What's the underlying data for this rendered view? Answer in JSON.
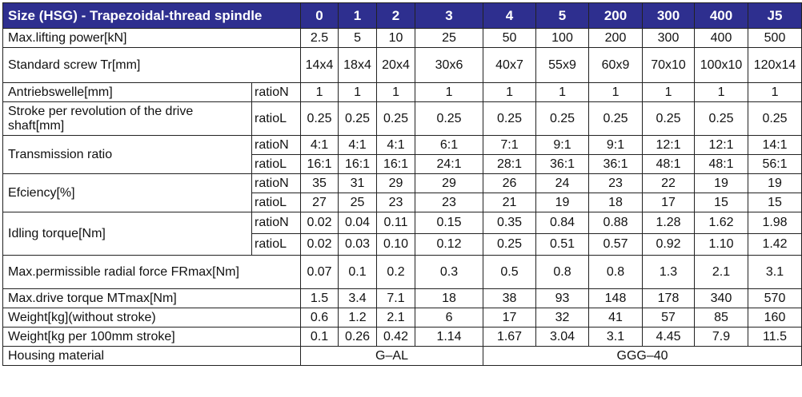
{
  "header": {
    "title": "Size (HSG) - Trapezoidal-thread spindle",
    "sizes": [
      "0",
      "1",
      "2",
      "3",
      "4",
      "5",
      "200",
      "300",
      "400",
      "J5"
    ]
  },
  "rows": {
    "max_lifting_power": {
      "label": "Max.lifting power[kN]",
      "values": [
        "2.5",
        "5",
        "10",
        "25",
        "50",
        "100",
        "200",
        "300",
        "400",
        "500"
      ]
    },
    "standard_screw": {
      "label": "Standard screw Tr[mm]",
      "values": [
        "14x4",
        "18x4",
        "20x4",
        "30x6",
        "40x7",
        "55x9",
        "60x9",
        "70x10",
        "100x10",
        "120x14"
      ]
    },
    "antriebswelle": {
      "label": "Antriebswelle[mm]",
      "ratio": "ratioN",
      "values": [
        "1",
        "1",
        "1",
        "1",
        "1",
        "1",
        "1",
        "1",
        "1",
        "1"
      ]
    },
    "stroke_per_revolution": {
      "label": "Stroke per revolution of the drive shaft[mm]",
      "ratio": "ratioL",
      "values": [
        "0.25",
        "0.25",
        "0.25",
        "0.25",
        "0.25",
        "0.25",
        "0.25",
        "0.25",
        "0.25",
        "0.25"
      ]
    },
    "transmission_ratio": {
      "label": "Transmission ratio",
      "ratio_n": "ratioN",
      "values_n": [
        "4:1",
        "4:1",
        "4:1",
        "6:1",
        "7:1",
        "9:1",
        "9:1",
        "12:1",
        "12:1",
        "14:1"
      ],
      "ratio_l": "ratioL",
      "values_l": [
        "16:1",
        "16:1",
        "16:1",
        "24:1",
        "28:1",
        "36:1",
        "36:1",
        "48:1",
        "48:1",
        "56:1"
      ]
    },
    "efficiency": {
      "label": "Efciency[%]",
      "ratio_n": "ratioN",
      "values_n": [
        "35",
        "31",
        "29",
        "29",
        "26",
        "24",
        "23",
        "22",
        "19",
        "19"
      ],
      "ratio_l": "ratioL",
      "values_l": [
        "27",
        "25",
        "23",
        "23",
        "21",
        "19",
        "18",
        "17",
        "15",
        "15"
      ]
    },
    "idling_torque": {
      "label": "Idling torque[Nm]",
      "ratio_n": "ratioN",
      "values_n": [
        "0.02",
        "0.04",
        "0.11",
        "0.15",
        "0.35",
        "0.84",
        "0.88",
        "1.28",
        "1.62",
        "1.98"
      ],
      "ratio_l": "ratioL",
      "values_l": [
        "0.02",
        "0.03",
        "0.10",
        "0.12",
        "0.25",
        "0.51",
        "0.57",
        "0.92",
        "1.10",
        "1.42"
      ]
    },
    "max_radial_force": {
      "label": "Max.permissible radial force FRmax[Nm]",
      "values": [
        "0.07",
        "0.1",
        "0.2",
        "0.3",
        "0.5",
        "0.8",
        "0.8",
        "1.3",
        "2.1",
        "3.1"
      ]
    },
    "max_drive_torque": {
      "label": "Max.drive torque MTmax[Nm]",
      "values": [
        "1.5",
        "3.4",
        "7.1",
        "18",
        "38",
        "93",
        "148",
        "178",
        "340",
        "570"
      ]
    },
    "weight": {
      "label": "Weight[kg](without stroke)",
      "values": [
        "0.6",
        "1.2",
        "2.1",
        "6",
        "17",
        "32",
        "41",
        "57",
        "85",
        "160"
      ]
    },
    "weight_per_stroke": {
      "label": "Weight[kg per 100mm stroke]",
      "values": [
        "0.1",
        "0.26",
        "0.42",
        "1.14",
        "1.67",
        "3.04",
        "3.1",
        "4.45",
        "7.9",
        "11.5"
      ]
    },
    "housing_material": {
      "label": "Housing material",
      "group_a": "G–AL",
      "group_b": "GGG–40"
    }
  }
}
